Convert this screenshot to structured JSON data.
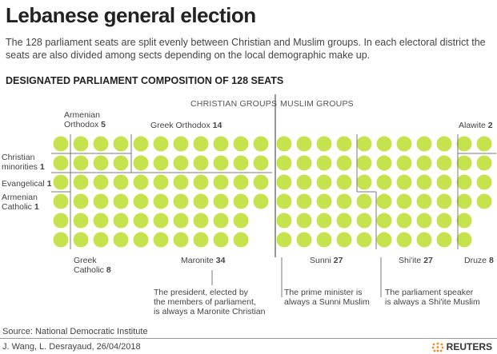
{
  "title": "Lebanese general election",
  "subtitle": "The 128 parliament seats are split evenly between Christian and Muslim groups. In each electoral district the seats are also divided among sects depending on the local demographic make up.",
  "colors": {
    "seat": "#c6e34e",
    "line": "#7a7a7a",
    "divider": "#555555"
  },
  "chart_data": {
    "type": "waffle",
    "title": "DESIGNATED PARLIAMENT COMPOSITION OF 128 SEATS",
    "total": 128,
    "groups": [
      {
        "label": "CHRISTIAN GROUPS",
        "seats": 64
      },
      {
        "label": "MUSLIM GROUPS",
        "seats": 64
      }
    ],
    "sects": [
      {
        "name": "Armenian Orthodox",
        "name_lines": [
          "Armenian",
          "Orthodox"
        ],
        "seats": 5,
        "group": "Christian"
      },
      {
        "name": "Christian minorities",
        "name_lines": [
          "Christian",
          "minorities"
        ],
        "seats": 1,
        "group": "Christian"
      },
      {
        "name": "Evangelical",
        "name_lines": [
          "Evangelical"
        ],
        "seats": 1,
        "group": "Christian"
      },
      {
        "name": "Armenian Catholic",
        "name_lines": [
          "Armenian",
          "Catholic"
        ],
        "seats": 1,
        "group": "Christian"
      },
      {
        "name": "Greek Catholic",
        "name_lines": [
          "Greek",
          "Catholic"
        ],
        "seats": 8,
        "group": "Christian"
      },
      {
        "name": "Greek Orthodox",
        "name_lines": [
          "Greek Orthodox"
        ],
        "seats": 14,
        "group": "Christian"
      },
      {
        "name": "Maronite",
        "name_lines": [
          "Maronite"
        ],
        "seats": 34,
        "group": "Christian"
      },
      {
        "name": "Sunni",
        "name_lines": [
          "Sunni"
        ],
        "seats": 27,
        "group": "Muslim"
      },
      {
        "name": "Shi'ite",
        "name_lines": [
          "Shi'ite"
        ],
        "seats": 27,
        "group": "Muslim"
      },
      {
        "name": "Druze",
        "name_lines": [
          "Druze"
        ],
        "seats": 8,
        "group": "Muslim"
      },
      {
        "name": "Alawite",
        "name_lines": [
          "Alawite"
        ],
        "seats": 2,
        "group": "Muslim"
      }
    ],
    "annotations": [
      {
        "sect": "Maronite",
        "lines": [
          "The president, elected by",
          "the members of parliament,",
          "is always a Maronite Christian"
        ]
      },
      {
        "sect": "Sunni",
        "lines": [
          "The prime minister is",
          "always a Sunni Muslim"
        ]
      },
      {
        "sect": "Shi'ite",
        "lines": [
          "The parliament speaker",
          "is always a Shi'ite Muslim"
        ]
      }
    ]
  },
  "footer": {
    "source": "Source: National Democratic Institute",
    "credit": "J. Wang, L. Desrayaud, 26/04/2018",
    "logo": "REUTERS"
  }
}
